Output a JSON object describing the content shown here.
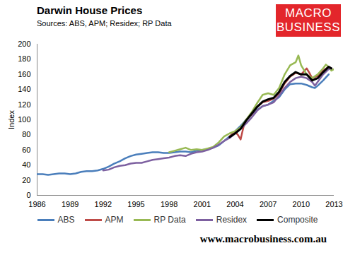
{
  "chart_data": {
    "type": "line",
    "title": "Darwin House Prices",
    "subtitle": "Sources: ABS, APM; Residex; RP Data",
    "logo": "MACRO BUSINESS",
    "footer": "www.macrobusiness.com.au",
    "y_label": "Index",
    "xlim": [
      1986,
      2013
    ],
    "xticks": [
      1986,
      1989,
      1992,
      1995,
      1998,
      2001,
      2004,
      2007,
      2010,
      2013
    ],
    "ylim": [
      0,
      200
    ],
    "yticks": [
      0,
      20,
      40,
      60,
      80,
      100,
      120,
      140,
      160,
      180,
      200
    ],
    "grid": false,
    "legend": "bottom",
    "series": [
      {
        "name": "ABS",
        "color": "#4a7ebb",
        "x": [
          1986,
          1986.5,
          1987,
          1987.5,
          1988,
          1988.5,
          1989,
          1989.5,
          1990,
          1990.5,
          1991,
          1991.5,
          1992,
          1992.5,
          1993,
          1993.5,
          1994,
          1994.5,
          1995,
          1995.5,
          1996,
          1996.5,
          1997,
          1997.5,
          1998,
          1998.5,
          1999,
          1999.5,
          2000,
          2000.5,
          2001,
          2001.5,
          2002,
          2002.5,
          2003,
          2003.5,
          2004,
          2004.5,
          2005,
          2005.5,
          2006,
          2006.5,
          2007,
          2007.5,
          2008,
          2008.5,
          2009,
          2009.5,
          2010,
          2010.5,
          2011,
          2011.25,
          2011.5,
          2012,
          2012.5
        ],
        "values": [
          28,
          28,
          27,
          28,
          29,
          29,
          28,
          29,
          31,
          32,
          32,
          33,
          35,
          38,
          42,
          45,
          49,
          52,
          54,
          55,
          56,
          57,
          57,
          56,
          56,
          57,
          58,
          58,
          57,
          59,
          60,
          61,
          63,
          66,
          72,
          78,
          85,
          92,
          100,
          107,
          113,
          118,
          120,
          125,
          130,
          140,
          147,
          148,
          148,
          146,
          143,
          142,
          145,
          152,
          160
        ]
      },
      {
        "name": "APM",
        "color": "#be4b48",
        "x": [
          2003.5,
          2004,
          2004.25,
          2004.5,
          2004.75,
          2005,
          2005.5,
          2006,
          2006.5,
          2007,
          2007.5,
          2008,
          2008.5,
          2009,
          2009.5,
          2010,
          2010.5,
          2010.75,
          2011,
          2011.5,
          2012,
          2012.5,
          2012.75
        ],
        "values": [
          78,
          84,
          80,
          74,
          90,
          100,
          107,
          117,
          123,
          125,
          128,
          135,
          148,
          157,
          162,
          160,
          168,
          162,
          155,
          158,
          165,
          170,
          168
        ]
      },
      {
        "name": "RP Data",
        "color": "#98b954",
        "x": [
          1998,
          1998.5,
          1999,
          1999.5,
          2000,
          2000.5,
          2001,
          2001.5,
          2002,
          2002.5,
          2003,
          2003.5,
          2004,
          2004.5,
          2005,
          2005.5,
          2006,
          2006.5,
          2007,
          2007.5,
          2008,
          2008.5,
          2009,
          2009.5,
          2009.75,
          2010,
          2010.5,
          2011,
          2011.5,
          2012,
          2012.25,
          2012.5,
          2012.75,
          2013
        ],
        "values": [
          57,
          59,
          61,
          63,
          60,
          61,
          60,
          62,
          64,
          70,
          78,
          82,
          85,
          90,
          100,
          110,
          122,
          133,
          135,
          133,
          142,
          160,
          172,
          176,
          185,
          172,
          160,
          155,
          160,
          168,
          173,
          170,
          165,
          167
        ]
      },
      {
        "name": "Residex",
        "color": "#7d60a0",
        "x": [
          1992,
          1992.5,
          1993,
          1993.5,
          1994,
          1994.5,
          1995,
          1995.5,
          1996,
          1996.5,
          1997,
          1997.5,
          1998,
          1998.5,
          1999,
          1999.5,
          2000,
          2000.5,
          2001,
          2001.5,
          2002,
          2002.5,
          2003,
          2003.5,
          2004,
          2004.5,
          2005,
          2005.5,
          2006,
          2006.5,
          2007,
          2007.5,
          2008,
          2008.5,
          2009,
          2009.5,
          2010,
          2010.5,
          2011,
          2011.25,
          2011.5,
          2012,
          2012.5,
          2012.75
        ],
        "values": [
          33,
          34,
          37,
          39,
          40,
          42,
          43,
          43,
          45,
          47,
          48,
          49,
          50,
          52,
          53,
          52,
          55,
          57,
          58,
          60,
          63,
          67,
          72,
          76,
          82,
          88,
          95,
          103,
          112,
          118,
          120,
          123,
          132,
          142,
          150,
          155,
          157,
          155,
          150,
          145,
          150,
          160,
          167,
          168
        ]
      },
      {
        "name": "Composite",
        "color": "#000000",
        "x": [
          2003.5,
          2004,
          2004.5,
          2005,
          2005.5,
          2006,
          2006.5,
          2007,
          2007.5,
          2008,
          2008.5,
          2009,
          2009.5,
          2010,
          2010.5,
          2011,
          2011.5,
          2012,
          2012.5,
          2012.75
        ],
        "values": [
          77,
          82,
          88,
          99,
          108,
          117,
          124,
          127,
          129,
          137,
          150,
          158,
          163,
          160,
          160,
          152,
          155,
          163,
          170,
          168
        ]
      }
    ]
  }
}
